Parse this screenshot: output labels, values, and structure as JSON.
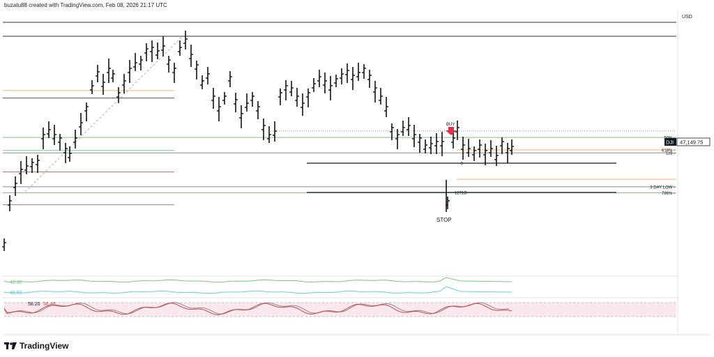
{
  "header": {
    "text": "buzatu88 created with TradingView.com, Feb 08, 2026 21:17 UTC"
  },
  "currency": "USD",
  "footer": {
    "brand": "TradingView"
  },
  "colors": {
    "price": "#111111",
    "orange": "#f5b26b",
    "green": "#7fc48a",
    "navy": "#44556f",
    "gray": "#8a8a8a",
    "red": "#e06a6a",
    "cyan": "#62d0dc",
    "rsi_red": "#c74a4a",
    "rsi_fill": "#fbe7ee",
    "arrow": "#e0304a"
  },
  "chart_data": {
    "type": "bar",
    "symbol": "DJI",
    "last_price": "47,149.75",
    "y_range": [
      44680,
      49100
    ],
    "levels": [
      {
        "name": "orange-upper",
        "value": 48010,
        "color": "orange",
        "span": "left"
      },
      {
        "name": "blue-left",
        "value": 47860,
        "color": "navy",
        "span": "left"
      },
      {
        "name": "dotted-reference",
        "value": 47200,
        "color": "gray",
        "span": "mid"
      },
      {
        "name": "50%",
        "label": "50%",
        "value": 47070,
        "color": "green",
        "span": "full"
      },
      {
        "name": "green-lower-left",
        "value": 46810,
        "color": "green",
        "span": "left"
      },
      {
        "name": "618%",
        "label": "618%",
        "value": 46820,
        "color": "orange",
        "span": "right"
      },
      {
        "name": "LIS",
        "label": "LIS",
        "value": 46760,
        "color": "gray",
        "span": "full"
      },
      {
        "name": "red-left",
        "value": 46380,
        "color": "red",
        "span": "left"
      },
      {
        "name": "3 DAY LOW",
        "label": "3 DAY LOW",
        "value": 46080,
        "color": "gray",
        "span": "full"
      },
      {
        "name": "786%",
        "label": "786%",
        "value": 45960,
        "color": "green",
        "span": "full"
      },
      {
        "name": "bottom-left",
        "value": 45720,
        "color": "gray",
        "span": "left"
      }
    ],
    "annotations": {
      "buy": "BUY",
      "stop": "STOP",
      "zero": "0",
      "ext": "1271D"
    },
    "indicators": {
      "ind1_label": "48.40",
      "ind2_label": "48.63",
      "rsi_label_1": "58.20",
      "rsi_label_2": "56.46"
    }
  }
}
